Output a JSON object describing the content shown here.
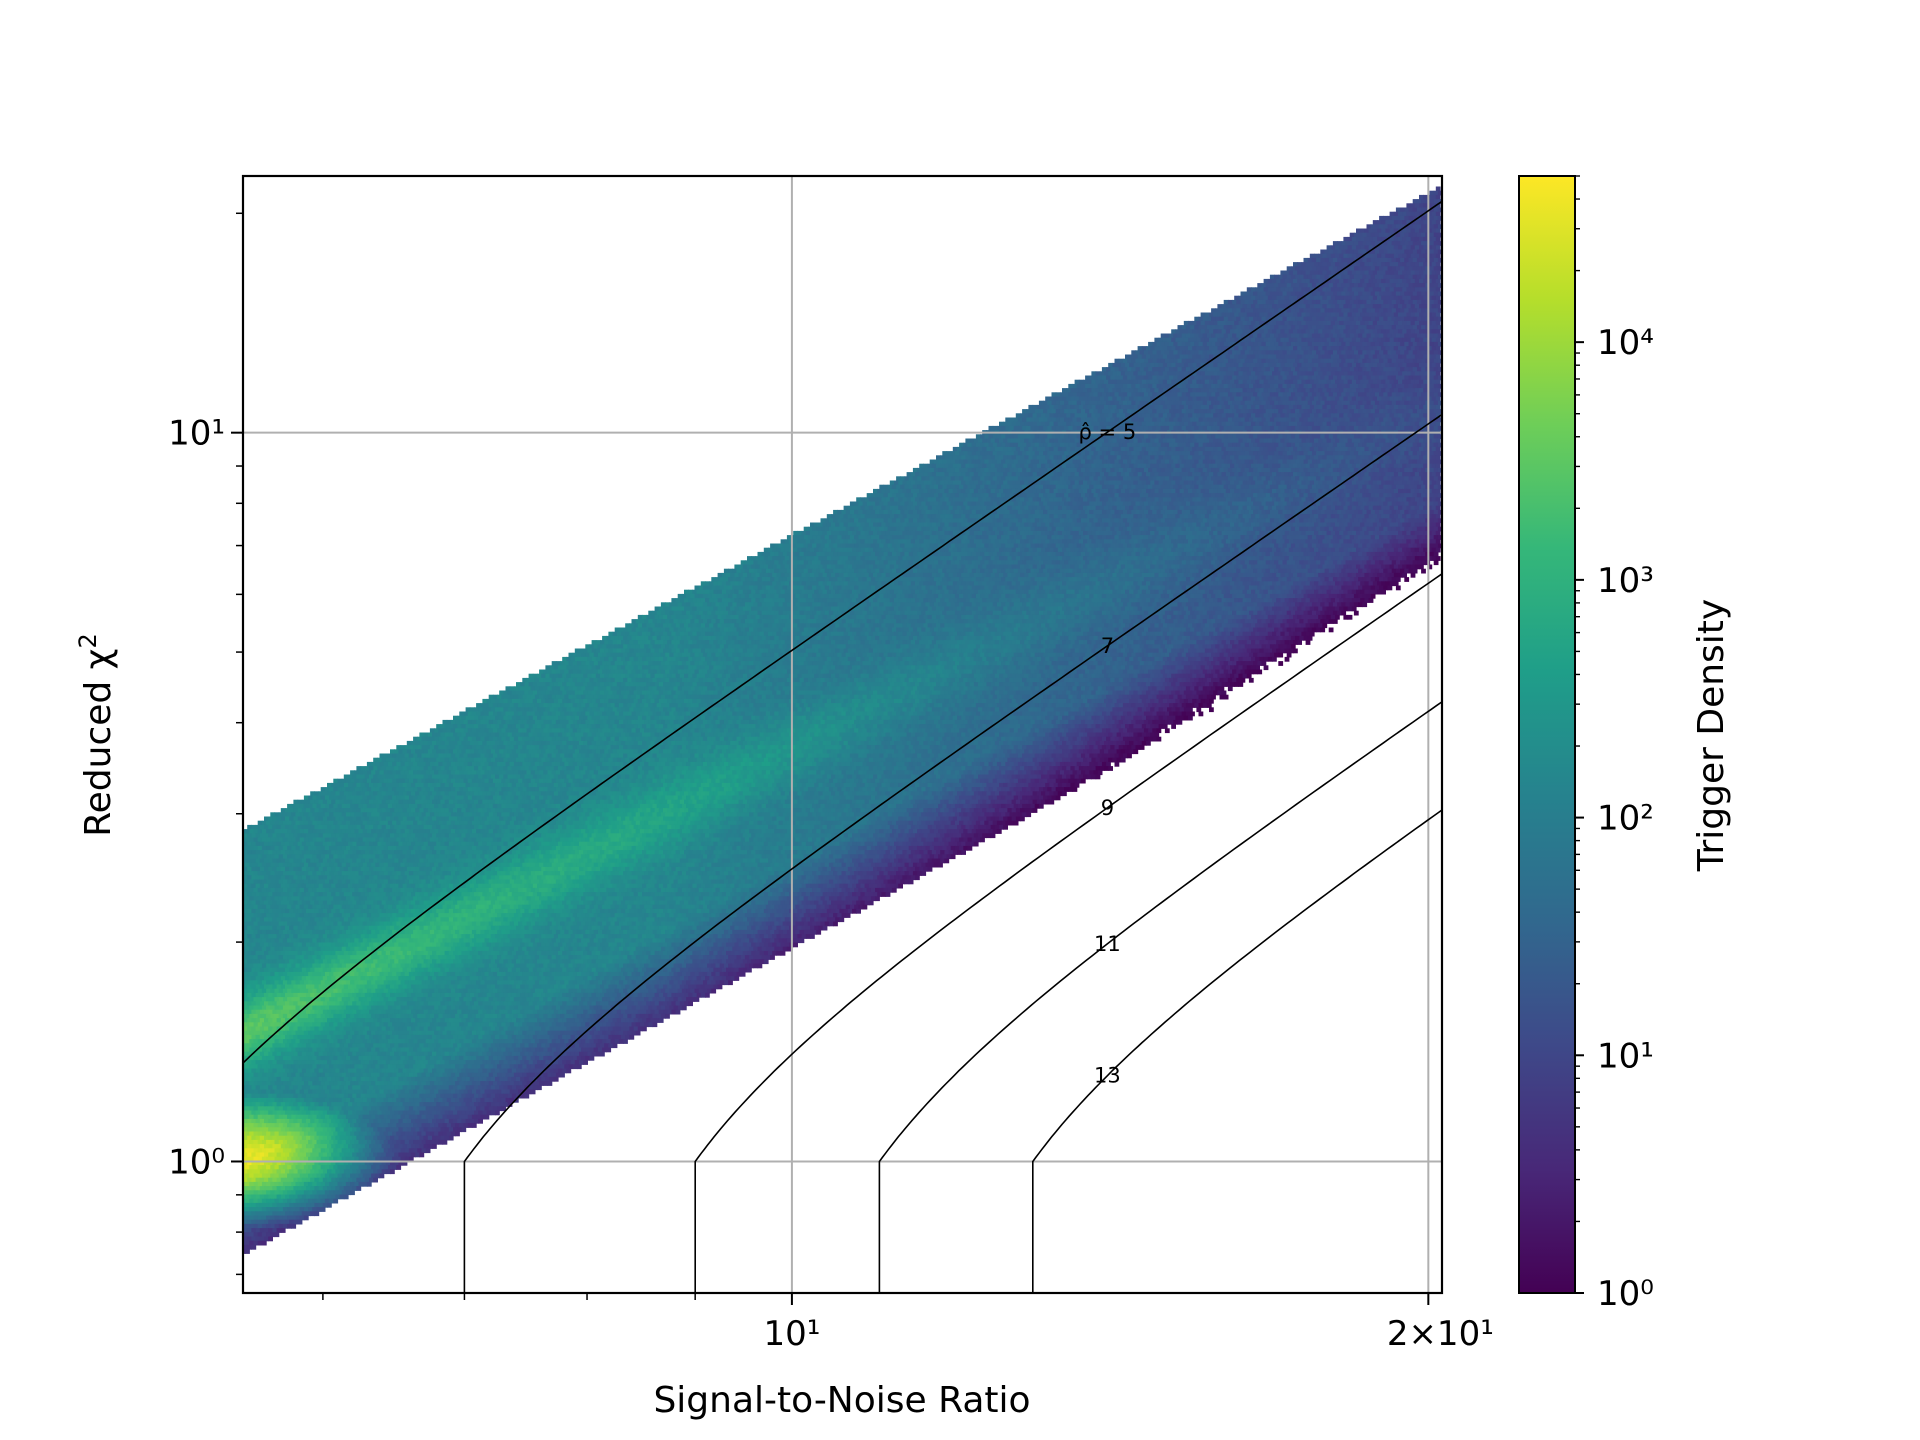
{
  "chart_data": {
    "type": "heatmap",
    "subtype": "hexbin",
    "title": "",
    "xlabel": "Signal-to-Noise Ratio",
    "ylabel": "Reduced χ²",
    "x_scale": "log",
    "y_scale": "log",
    "xlim": [
      5.5,
      20.3
    ],
    "ylim": [
      0.66,
      22.5
    ],
    "grid": true,
    "x_ticks": [
      {
        "value": 10,
        "label": "10¹"
      },
      {
        "value": 20,
        "label": "2×10¹"
      }
    ],
    "y_ticks": [
      {
        "value": 1,
        "label": "10⁰"
      },
      {
        "value": 10,
        "label": "10¹"
      }
    ],
    "colorbar": {
      "label": "Trigger Density",
      "scale": "log",
      "colormap": "viridis",
      "range": [
        1,
        50000
      ],
      "ticks": [
        {
          "value": 1,
          "label": "10⁰"
        },
        {
          "value": 10,
          "label": "10¹"
        },
        {
          "value": 100,
          "label": "10²"
        },
        {
          "value": 1000,
          "label": "10³"
        },
        {
          "value": 10000,
          "label": "10⁴"
        }
      ]
    },
    "contours": [
      {
        "level": 5,
        "label": "ρ̂ = 5"
      },
      {
        "level": 7,
        "label": "7"
      },
      {
        "level": 9,
        "label": "9"
      },
      {
        "level": 11,
        "label": "11"
      },
      {
        "level": 13,
        "label": "13"
      }
    ],
    "density_regions": [
      {
        "snr_range": [
          5.5,
          7.2
        ],
        "chisq_range": [
          0.7,
          1.6
        ],
        "peak_density": 50000,
        "note": "bright core near snr 5.5, chisq 1"
      },
      {
        "snr_range": [
          5.5,
          10
        ],
        "chisq_range": [
          1.0,
          6.0
        ],
        "typical_density": 300
      },
      {
        "snr_range": [
          8,
          19
        ],
        "chisq_range": [
          2.5,
          21
        ],
        "typical_density": 3
      }
    ]
  },
  "colors": {
    "grid": "#b0b0b0",
    "axes": "#000000",
    "contour": "#000000",
    "viridis": [
      "#440154",
      "#482878",
      "#3e4989",
      "#31688e",
      "#26828e",
      "#1f9e89",
      "#35b779",
      "#6ece58",
      "#b5de2b",
      "#fde725"
    ]
  }
}
